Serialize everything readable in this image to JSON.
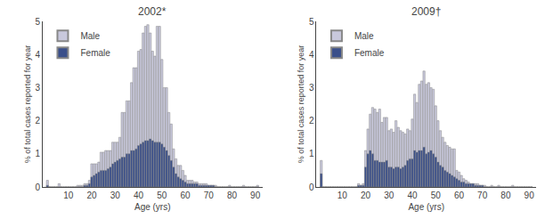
{
  "chart_data": [
    {
      "type": "bar",
      "title": "2002*",
      "xlabel": "Age (yrs)",
      "ylabel": "% of total cases reported for year",
      "x": [
        1,
        2,
        3,
        4,
        5,
        6,
        7,
        8,
        9,
        10,
        11,
        12,
        13,
        14,
        15,
        16,
        17,
        18,
        19,
        20,
        21,
        22,
        23,
        24,
        25,
        26,
        27,
        28,
        29,
        30,
        31,
        32,
        33,
        34,
        35,
        36,
        37,
        38,
        39,
        40,
        41,
        42,
        43,
        44,
        45,
        46,
        47,
        48,
        49,
        50,
        51,
        52,
        53,
        54,
        55,
        56,
        57,
        58,
        59,
        60,
        61,
        62,
        63,
        64,
        65,
        66,
        67,
        68,
        69,
        70,
        71,
        72,
        73,
        74,
        75,
        76,
        77,
        78,
        79,
        80,
        81,
        82,
        83,
        84,
        85,
        86,
        87,
        88,
        89,
        90,
        91
      ],
      "series": [
        {
          "name": "Male",
          "color": "#c8c8dc",
          "values": [
            0.2,
            0.0,
            0.0,
            0.0,
            0.0,
            0.1,
            0.0,
            0.0,
            0.0,
            0.0,
            0.0,
            0.0,
            0.0,
            0.05,
            0.05,
            0.05,
            0.1,
            0.1,
            0.2,
            0.7,
            0.7,
            0.7,
            0.75,
            1.05,
            1.05,
            1.1,
            1.1,
            1.1,
            1.35,
            1.35,
            1.35,
            1.5,
            2.25,
            2.25,
            2.6,
            2.6,
            3.15,
            3.6,
            3.6,
            4.1,
            4.15,
            4.65,
            4.85,
            4.9,
            4.65,
            4.1,
            3.95,
            4.85,
            4.85,
            3.85,
            3.0,
            3.0,
            2.25,
            1.9,
            1.15,
            0.85,
            0.65,
            0.65,
            0.5,
            0.35,
            0.2,
            0.2,
            0.2,
            0.15,
            0.15,
            0.1,
            0.1,
            0.1,
            0.1,
            0.05,
            0.05,
            0.05,
            0.05,
            0.0,
            0.0,
            0.0,
            0.0,
            0.0,
            0.05,
            0.0,
            0.0,
            0.0,
            0.0,
            0.0,
            0.05,
            0.0,
            0.0,
            0.0,
            0.0,
            0.0,
            0.05
          ]
        },
        {
          "name": "Female",
          "color": "#3a4f8a",
          "values": [
            0.05,
            0.0,
            0.0,
            0.0,
            0.0,
            0.0,
            0.0,
            0.0,
            0.0,
            0.0,
            0.0,
            0.0,
            0.0,
            0.0,
            0.0,
            0.0,
            0.05,
            0.05,
            0.1,
            0.3,
            0.35,
            0.4,
            0.45,
            0.5,
            0.5,
            0.5,
            0.55,
            0.6,
            0.7,
            0.75,
            0.8,
            0.85,
            0.9,
            0.9,
            1.0,
            1.0,
            1.1,
            1.1,
            1.15,
            1.25,
            1.3,
            1.35,
            1.4,
            1.4,
            1.45,
            1.4,
            1.35,
            1.35,
            1.35,
            1.3,
            1.2,
            1.1,
            0.95,
            0.8,
            0.6,
            0.4,
            0.3,
            0.25,
            0.2,
            0.15,
            0.1,
            0.1,
            0.1,
            0.1,
            0.1,
            0.05,
            0.05,
            0.05,
            0.05,
            0.05,
            0.05,
            0.05,
            0.0,
            0.0,
            0.0,
            0.0,
            0.0,
            0.0,
            0.0,
            0.0,
            0.0,
            0.0,
            0.0,
            0.0,
            0.0,
            0.0,
            0.0,
            0.0,
            0.0,
            0.0,
            0.0
          ]
        }
      ],
      "xlim": [
        -1,
        93
      ],
      "xticks": [
        10,
        20,
        30,
        40,
        50,
        60,
        70,
        80,
        90
      ],
      "ylim": [
        0,
        5
      ],
      "yticks": [
        0,
        1,
        2,
        3,
        4,
        5
      ],
      "stacked": false,
      "grid": false,
      "legend": "upper left"
    },
    {
      "type": "bar",
      "title": "2009†",
      "xlabel": "Age (yrs)",
      "ylabel": "% of total cases reported for year",
      "x": [
        1,
        2,
        3,
        4,
        5,
        6,
        7,
        8,
        9,
        10,
        11,
        12,
        13,
        14,
        15,
        16,
        17,
        18,
        19,
        20,
        21,
        22,
        23,
        24,
        25,
        26,
        27,
        28,
        29,
        30,
        31,
        32,
        33,
        34,
        35,
        36,
        37,
        38,
        39,
        40,
        41,
        42,
        43,
        44,
        45,
        46,
        47,
        48,
        49,
        50,
        51,
        52,
        53,
        54,
        55,
        56,
        57,
        58,
        59,
        60,
        61,
        62,
        63,
        64,
        65,
        66,
        67,
        68,
        69,
        70,
        71,
        72,
        73,
        74,
        75,
        76,
        77,
        78,
        79,
        80,
        81,
        82,
        83,
        84,
        85,
        86,
        87,
        88,
        89,
        90,
        91
      ],
      "series": [
        {
          "name": "Male",
          "color": "#c8c8dc",
          "values": [
            0.8,
            0.0,
            0.0,
            0.0,
            0.0,
            0.0,
            0.0,
            0.0,
            0.0,
            0.0,
            0.0,
            0.0,
            0.0,
            0.0,
            0.0,
            0.0,
            0.1,
            0.05,
            0.1,
            1.1,
            1.75,
            2.2,
            2.4,
            2.35,
            2.25,
            2.35,
            1.95,
            2.1,
            2.1,
            1.7,
            1.75,
            1.65,
            2.0,
            1.8,
            1.7,
            1.65,
            1.6,
            1.75,
            1.7,
            2.05,
            2.8,
            2.55,
            3.1,
            3.2,
            3.5,
            3.1,
            3.15,
            3.0,
            2.95,
            2.45,
            2.0,
            1.7,
            1.5,
            1.35,
            1.25,
            1.2,
            1.15,
            1.15,
            0.5,
            0.45,
            0.35,
            0.25,
            0.2,
            0.15,
            0.1,
            0.1,
            0.1,
            0.1,
            0.05,
            0.05,
            0.05,
            0.0,
            0.0,
            0.05,
            0.0,
            0.0,
            0.05,
            0.0,
            0.0,
            0.0,
            0.0,
            0.0,
            0.05,
            0.0,
            0.0,
            0.0,
            0.0,
            0.0,
            0.0,
            0.0,
            0.0
          ]
        },
        {
          "name": "Female",
          "color": "#3a4f8a",
          "values": [
            0.4,
            0.0,
            0.0,
            0.0,
            0.0,
            0.0,
            0.0,
            0.0,
            0.0,
            0.0,
            0.0,
            0.0,
            0.0,
            0.0,
            0.0,
            0.0,
            0.05,
            0.05,
            0.05,
            0.6,
            1.0,
            1.1,
            1.0,
            0.8,
            0.8,
            0.75,
            0.75,
            0.75,
            0.8,
            0.6,
            0.6,
            0.55,
            0.6,
            0.6,
            0.55,
            0.6,
            0.65,
            0.8,
            0.85,
            0.85,
            1.1,
            1.05,
            1.1,
            1.1,
            1.2,
            1.0,
            1.05,
            1.1,
            1.0,
            0.9,
            0.75,
            0.65,
            0.6,
            0.5,
            0.45,
            0.4,
            0.35,
            0.3,
            0.25,
            0.2,
            0.15,
            0.15,
            0.1,
            0.1,
            0.1,
            0.1,
            0.05,
            0.05,
            0.05,
            0.05,
            0.0,
            0.0,
            0.0,
            0.0,
            0.0,
            0.0,
            0.0,
            0.0,
            0.0,
            0.0,
            0.0,
            0.0,
            0.0,
            0.0,
            0.0,
            0.0,
            0.0,
            0.0,
            0.0,
            0.0,
            0.0
          ]
        }
      ],
      "xlim": [
        -1,
        93
      ],
      "xticks": [
        10,
        20,
        30,
        40,
        50,
        60,
        70,
        80,
        90
      ],
      "ylim": [
        0,
        5
      ],
      "yticks": [
        0,
        1,
        2,
        3,
        4,
        5
      ],
      "stacked": false,
      "grid": false,
      "legend": "upper left"
    }
  ]
}
